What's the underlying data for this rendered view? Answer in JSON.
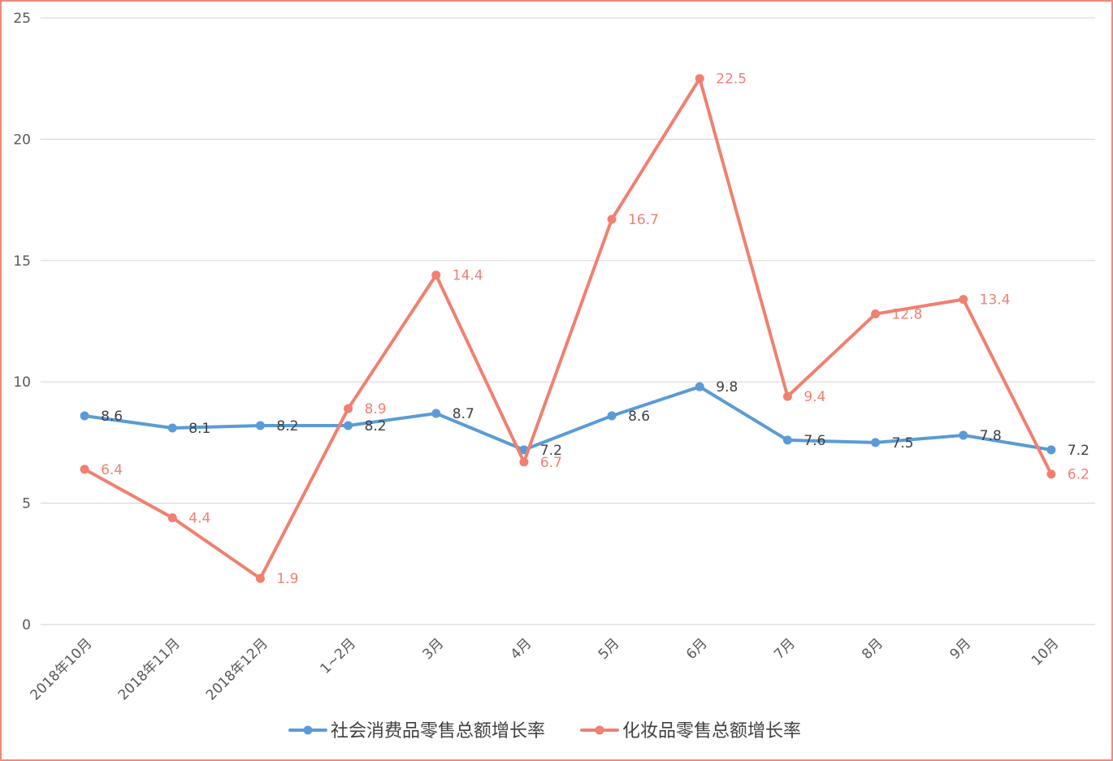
{
  "chart_data": {
    "type": "line",
    "categories": [
      "2018年10月",
      "2018年11月",
      "2018年12月",
      "1~2月",
      "3月",
      "4月",
      "5月",
      "6月",
      "7月",
      "8月",
      "9月",
      "10月"
    ],
    "series": [
      {
        "name": "社会消费品零售总额增长率",
        "color": "#5b9bd5",
        "label_color": "#404040",
        "values": [
          8.6,
          8.1,
          8.2,
          8.2,
          8.7,
          7.2,
          8.6,
          9.8,
          7.6,
          7.5,
          7.8,
          7.2
        ]
      },
      {
        "name": "化妆品零售总额增长率",
        "color": "#f08070",
        "label_color": "#f08070",
        "values": [
          6.4,
          4.4,
          1.9,
          8.9,
          14.4,
          6.7,
          16.7,
          22.5,
          9.4,
          12.8,
          13.4,
          6.2
        ]
      }
    ],
    "ylim": [
      0,
      25
    ],
    "yticks": [
      0,
      5,
      10,
      15,
      20,
      25
    ],
    "grid": true,
    "legend_position": "bottom",
    "title": "",
    "xlabel": "",
    "ylabel": ""
  }
}
